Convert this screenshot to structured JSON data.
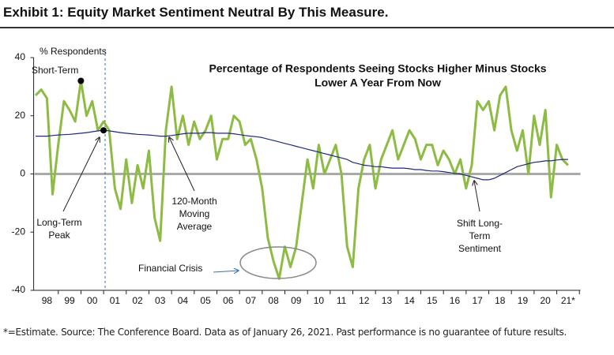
{
  "header": {
    "title": "Exhibit 1: Equity Market Sentiment Neutral By This Measure."
  },
  "footer": {
    "note": "*=Estimate. Source: The Conference Board. Data as of January 26, 2021. Past performance is no guarantee of future results."
  },
  "chart_data": {
    "type": "line",
    "title_lines": [
      "Percentage of Respondents Seeing Stocks Higher Minus Stocks",
      "Lower A Year From Now"
    ],
    "y_label": "% Respondents",
    "annotations": [
      [
        "Short-Term"
      ],
      [
        "Long-Term",
        "Peak"
      ],
      [
        "120-Month",
        "Moving",
        "Average"
      ],
      [
        "Financial Crisis"
      ],
      [
        "Shift Long-",
        "Term",
        "Sentiment"
      ]
    ],
    "x": [
      1997.5,
      1997.75,
      1998,
      1998.25,
      1998.5,
      1998.75,
      1999,
      1999.25,
      1999.5,
      1999.75,
      2000,
      2000.25,
      2000.5,
      2000.75,
      2001,
      2001.25,
      2001.5,
      2001.75,
      2002,
      2002.25,
      2002.5,
      2002.75,
      2003,
      2003.25,
      2003.5,
      2003.75,
      2004,
      2004.25,
      2004.5,
      2004.75,
      2005,
      2005.25,
      2005.5,
      2005.75,
      2006,
      2006.25,
      2006.5,
      2006.75,
      2007,
      2007.25,
      2007.5,
      2007.75,
      2008,
      2008.25,
      2008.5,
      2008.75,
      2009,
      2009.25,
      2009.5,
      2009.75,
      2010,
      2010.25,
      2010.5,
      2010.75,
      2011,
      2011.25,
      2011.5,
      2011.75,
      2012,
      2012.25,
      2012.5,
      2012.75,
      2013,
      2013.25,
      2013.5,
      2013.75,
      2014,
      2014.25,
      2014.5,
      2014.75,
      2015,
      2015.25,
      2015.5,
      2015.75,
      2016,
      2016.25,
      2016.5,
      2016.75,
      2017,
      2017.25,
      2017.5,
      2017.75,
      2018,
      2018.25,
      2018.5,
      2018.75,
      2019,
      2019.25,
      2019.5,
      2019.75,
      2020,
      2020.25,
      2020.5,
      2020.75,
      2021
    ],
    "series": [
      {
        "color": "#8dbb44",
        "values": [
          27,
          29,
          26,
          -7,
          10,
          25,
          22,
          18,
          32,
          20,
          25,
          15,
          18,
          15,
          -5,
          -12,
          5,
          -10,
          3,
          -5,
          8,
          -15,
          -23,
          15,
          30,
          12,
          20,
          10,
          18,
          12,
          15,
          20,
          5,
          12,
          12,
          20,
          18,
          10,
          12,
          5,
          -5,
          -22,
          -30,
          -36,
          -25,
          -32,
          -25,
          -10,
          5,
          -5,
          10,
          0,
          5,
          10,
          0,
          -25,
          -32,
          -5,
          5,
          10,
          -5,
          5,
          10,
          15,
          5,
          10,
          15,
          12,
          5,
          10,
          10,
          3,
          8,
          5,
          0,
          5,
          -5,
          3,
          25,
          22,
          25,
          15,
          27,
          30,
          15,
          8,
          15,
          0,
          20,
          10,
          22,
          -8,
          10,
          5,
          3
        ]
      },
      {
        "color": "#1f2a7a",
        "values": [
          13,
          13,
          13,
          13.2,
          13.4,
          13.5,
          13.6,
          13.8,
          14,
          14.2,
          14.5,
          14.8,
          15,
          14.8,
          14.5,
          14.2,
          14,
          13.8,
          13.6,
          13.5,
          13.4,
          13.2,
          13,
          13,
          13.2,
          13.5,
          13.8,
          14,
          14,
          14,
          14.2,
          14.2,
          14,
          14,
          14,
          13.8,
          13.5,
          13.2,
          13,
          12.8,
          12.5,
          12,
          11.5,
          11,
          10.5,
          10,
          9.5,
          9,
          8.5,
          8,
          7.5,
          7,
          6.5,
          6,
          5.5,
          5,
          4,
          3.5,
          3,
          2.8,
          2.5,
          2.5,
          2.2,
          2,
          2,
          2,
          1.8,
          1.5,
          1.5,
          1.2,
          1,
          1,
          0.8,
          0.5,
          0.2,
          0,
          -0.5,
          -1,
          -1.5,
          -2,
          -2,
          -1.5,
          -0.5,
          0.5,
          1.5,
          2.5,
          3,
          3.5,
          4,
          4.2,
          4.5,
          4.5,
          4.8,
          5,
          5
        ]
      }
    ],
    "xlim": [
      1997.45,
      2021.55
    ],
    "xticks": [
      {
        "value": 1998,
        "label": "98"
      },
      {
        "value": 1999,
        "label": "99"
      },
      {
        "value": 2000,
        "label": "00"
      },
      {
        "value": 2001,
        "label": "01"
      },
      {
        "value": 2002,
        "label": "02"
      },
      {
        "value": 2003,
        "label": "03"
      },
      {
        "value": 2004,
        "label": "04"
      },
      {
        "value": 2005,
        "label": "05"
      },
      {
        "value": 2006,
        "label": "06"
      },
      {
        "value": 2007,
        "label": "07"
      },
      {
        "value": 2008,
        "label": "08"
      },
      {
        "value": 2009,
        "label": "09"
      },
      {
        "value": 2010,
        "label": "10"
      },
      {
        "value": 2011,
        "label": "11"
      },
      {
        "value": 2012,
        "label": "12"
      },
      {
        "value": 2013,
        "label": "13"
      },
      {
        "value": 2014,
        "label": "14"
      },
      {
        "value": 2015,
        "label": "15"
      },
      {
        "value": 2016,
        "label": "16"
      },
      {
        "value": 2017,
        "label": "17"
      },
      {
        "value": 2018,
        "label": "18"
      },
      {
        "value": 2019,
        "label": "19"
      },
      {
        "value": 2020,
        "label": "20"
      },
      {
        "value": 2021,
        "label": "21*"
      }
    ],
    "ylim": [
      -40,
      40
    ],
    "yticks": [
      40,
      20,
      0,
      -20,
      -40
    ],
    "zero_line": true
  }
}
